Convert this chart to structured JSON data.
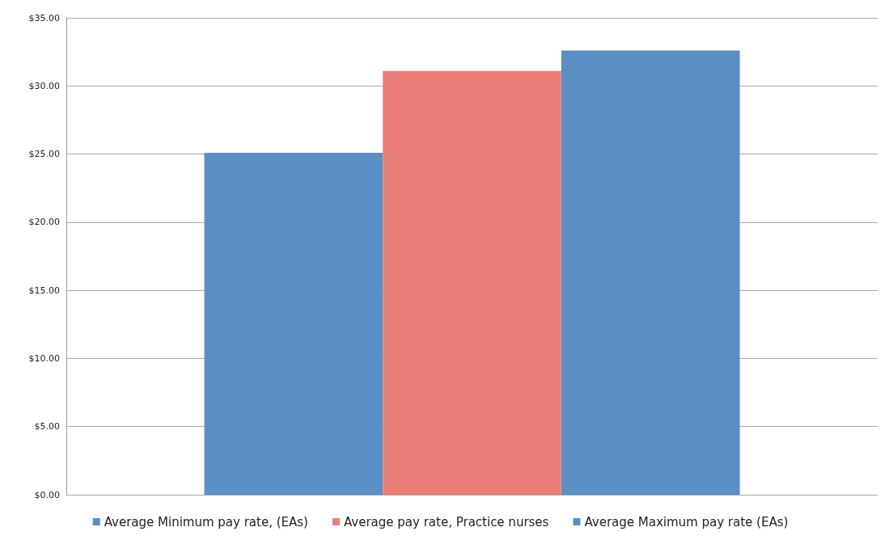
{
  "chart_data": {
    "type": "bar",
    "categories": [
      null
    ],
    "series": [
      {
        "name": "Average Minimum pay rate, (EAs)",
        "color": "#5b8fc4",
        "values": [
          25.1
        ]
      },
      {
        "name": "Average pay rate, Practice nurses",
        "color": "#ea7f78",
        "values": [
          31.1
        ]
      },
      {
        "name": "Average Maximum pay rate (EAs)",
        "color": "#5b8fc4",
        "values": [
          32.6
        ]
      }
    ],
    "ylim": [
      0,
      35
    ],
    "yticks": [
      {
        "value": 0,
        "label": "$0.00"
      },
      {
        "value": 5,
        "label": "$5.00"
      },
      {
        "value": 10,
        "label": "$10.00"
      },
      {
        "value": 15,
        "label": "$15.00"
      },
      {
        "value": 20,
        "label": "$20.00"
      },
      {
        "value": 25,
        "label": "$25.00"
      },
      {
        "value": 30,
        "label": "$30.00"
      },
      {
        "value": 35,
        "label": "$35.00"
      }
    ],
    "grid": "y",
    "legend": "bottom"
  }
}
